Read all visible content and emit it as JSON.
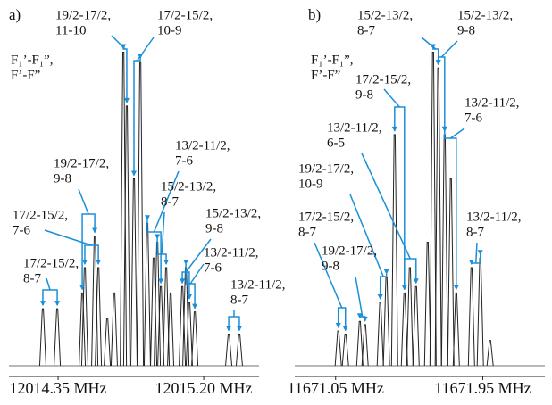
{
  "chart_data": [
    {
      "type": "line",
      "title": "a)",
      "annotation_key": [
        "F₁’-F₁”,",
        "F’-F”"
      ],
      "xlim": [
        12014.063,
        12015.523
      ],
      "xticks": [
        {
          "value": 12014.35,
          "label": "12014.35 MHz"
        },
        {
          "value": 12015.2,
          "label": "12015.20 MHz"
        }
      ],
      "ylim": [
        0,
        100
      ],
      "x": [
        12014.261,
        12014.345,
        12014.491,
        12014.506,
        12014.564,
        12014.585,
        12014.637,
        12014.678,
        12014.731,
        12014.751,
        12014.793,
        12014.83,
        12014.871,
        12014.908,
        12014.929,
        12014.95,
        12014.981,
        12015.007,
        12015.075,
        12015.096,
        12015.116,
        12015.148,
        12015.346,
        12015.408
      ],
      "values": [
        18,
        18,
        23,
        31,
        41,
        31,
        15,
        23,
        99,
        82,
        59,
        96,
        45,
        34,
        39,
        25,
        31,
        23,
        25,
        31,
        20,
        17,
        10,
        10
      ],
      "annotations": [
        {
          "lines": [
            "19/2-17/2,",
            "11-10"
          ]
        },
        {
          "lines": [
            "17/2-15/2,",
            "10-9"
          ]
        },
        {
          "lines": [
            "19/2-17/2,",
            "9-8"
          ]
        },
        {
          "lines": [
            "17/2-15/2,",
            "7-6"
          ]
        },
        {
          "lines": [
            "17/2-15/2,",
            "8-7"
          ]
        },
        {
          "lines": [
            "13/2-11/2,",
            "7-6"
          ]
        },
        {
          "lines": [
            "15/2-13/2,",
            "8-7"
          ]
        },
        {
          "lines": [
            "15/2-13/2,",
            "9-8"
          ]
        },
        {
          "lines": [
            "13/2-11/2,",
            "7-6"
          ]
        },
        {
          "lines": [
            "13/2-11/2,",
            "8-7"
          ]
        }
      ]
    },
    {
      "type": "line",
      "title": "b)",
      "annotation_key": [
        "F₁’-F₁”,",
        "F’-F”"
      ],
      "xlim": [
        11670.8,
        11672.33
      ],
      "xticks": [
        {
          "value": 11671.05,
          "label": "11671.05 MHz"
        },
        {
          "value": 11671.95,
          "label": "11671.95 MHz"
        }
      ],
      "ylim": [
        0,
        100
      ],
      "x": [
        11671.066,
        11671.11,
        11671.198,
        11671.23,
        11671.323,
        11671.361,
        11671.411,
        11671.471,
        11671.504,
        11671.542,
        11671.613,
        11671.646,
        11671.678,
        11671.717,
        11671.755,
        11671.788,
        11671.881,
        11671.935,
        11671.995
      ],
      "values": [
        11,
        10,
        14,
        13,
        20,
        28,
        73,
        23,
        31,
        25,
        39,
        99,
        94,
        73,
        59,
        23,
        31,
        34,
        8
      ],
      "annotations": [
        {
          "lines": [
            "15/2-13/2,",
            "8-7"
          ]
        },
        {
          "lines": [
            "15/2-13/2,",
            "9-8"
          ]
        },
        {
          "lines": [
            "17/2-15/2,",
            "9-8"
          ]
        },
        {
          "lines": [
            "13/2-11/2,",
            "6-5"
          ]
        },
        {
          "lines": [
            "13/2-11/2,",
            "7-6"
          ]
        },
        {
          "lines": [
            "19/2-17/2,",
            "10-9"
          ]
        },
        {
          "lines": [
            "17/2-15/2,",
            "8-7"
          ]
        },
        {
          "lines": [
            "19/2-17/2,",
            "9-8"
          ]
        },
        {
          "lines": [
            "13/2-11/2,",
            "8-7"
          ]
        }
      ]
    }
  ]
}
